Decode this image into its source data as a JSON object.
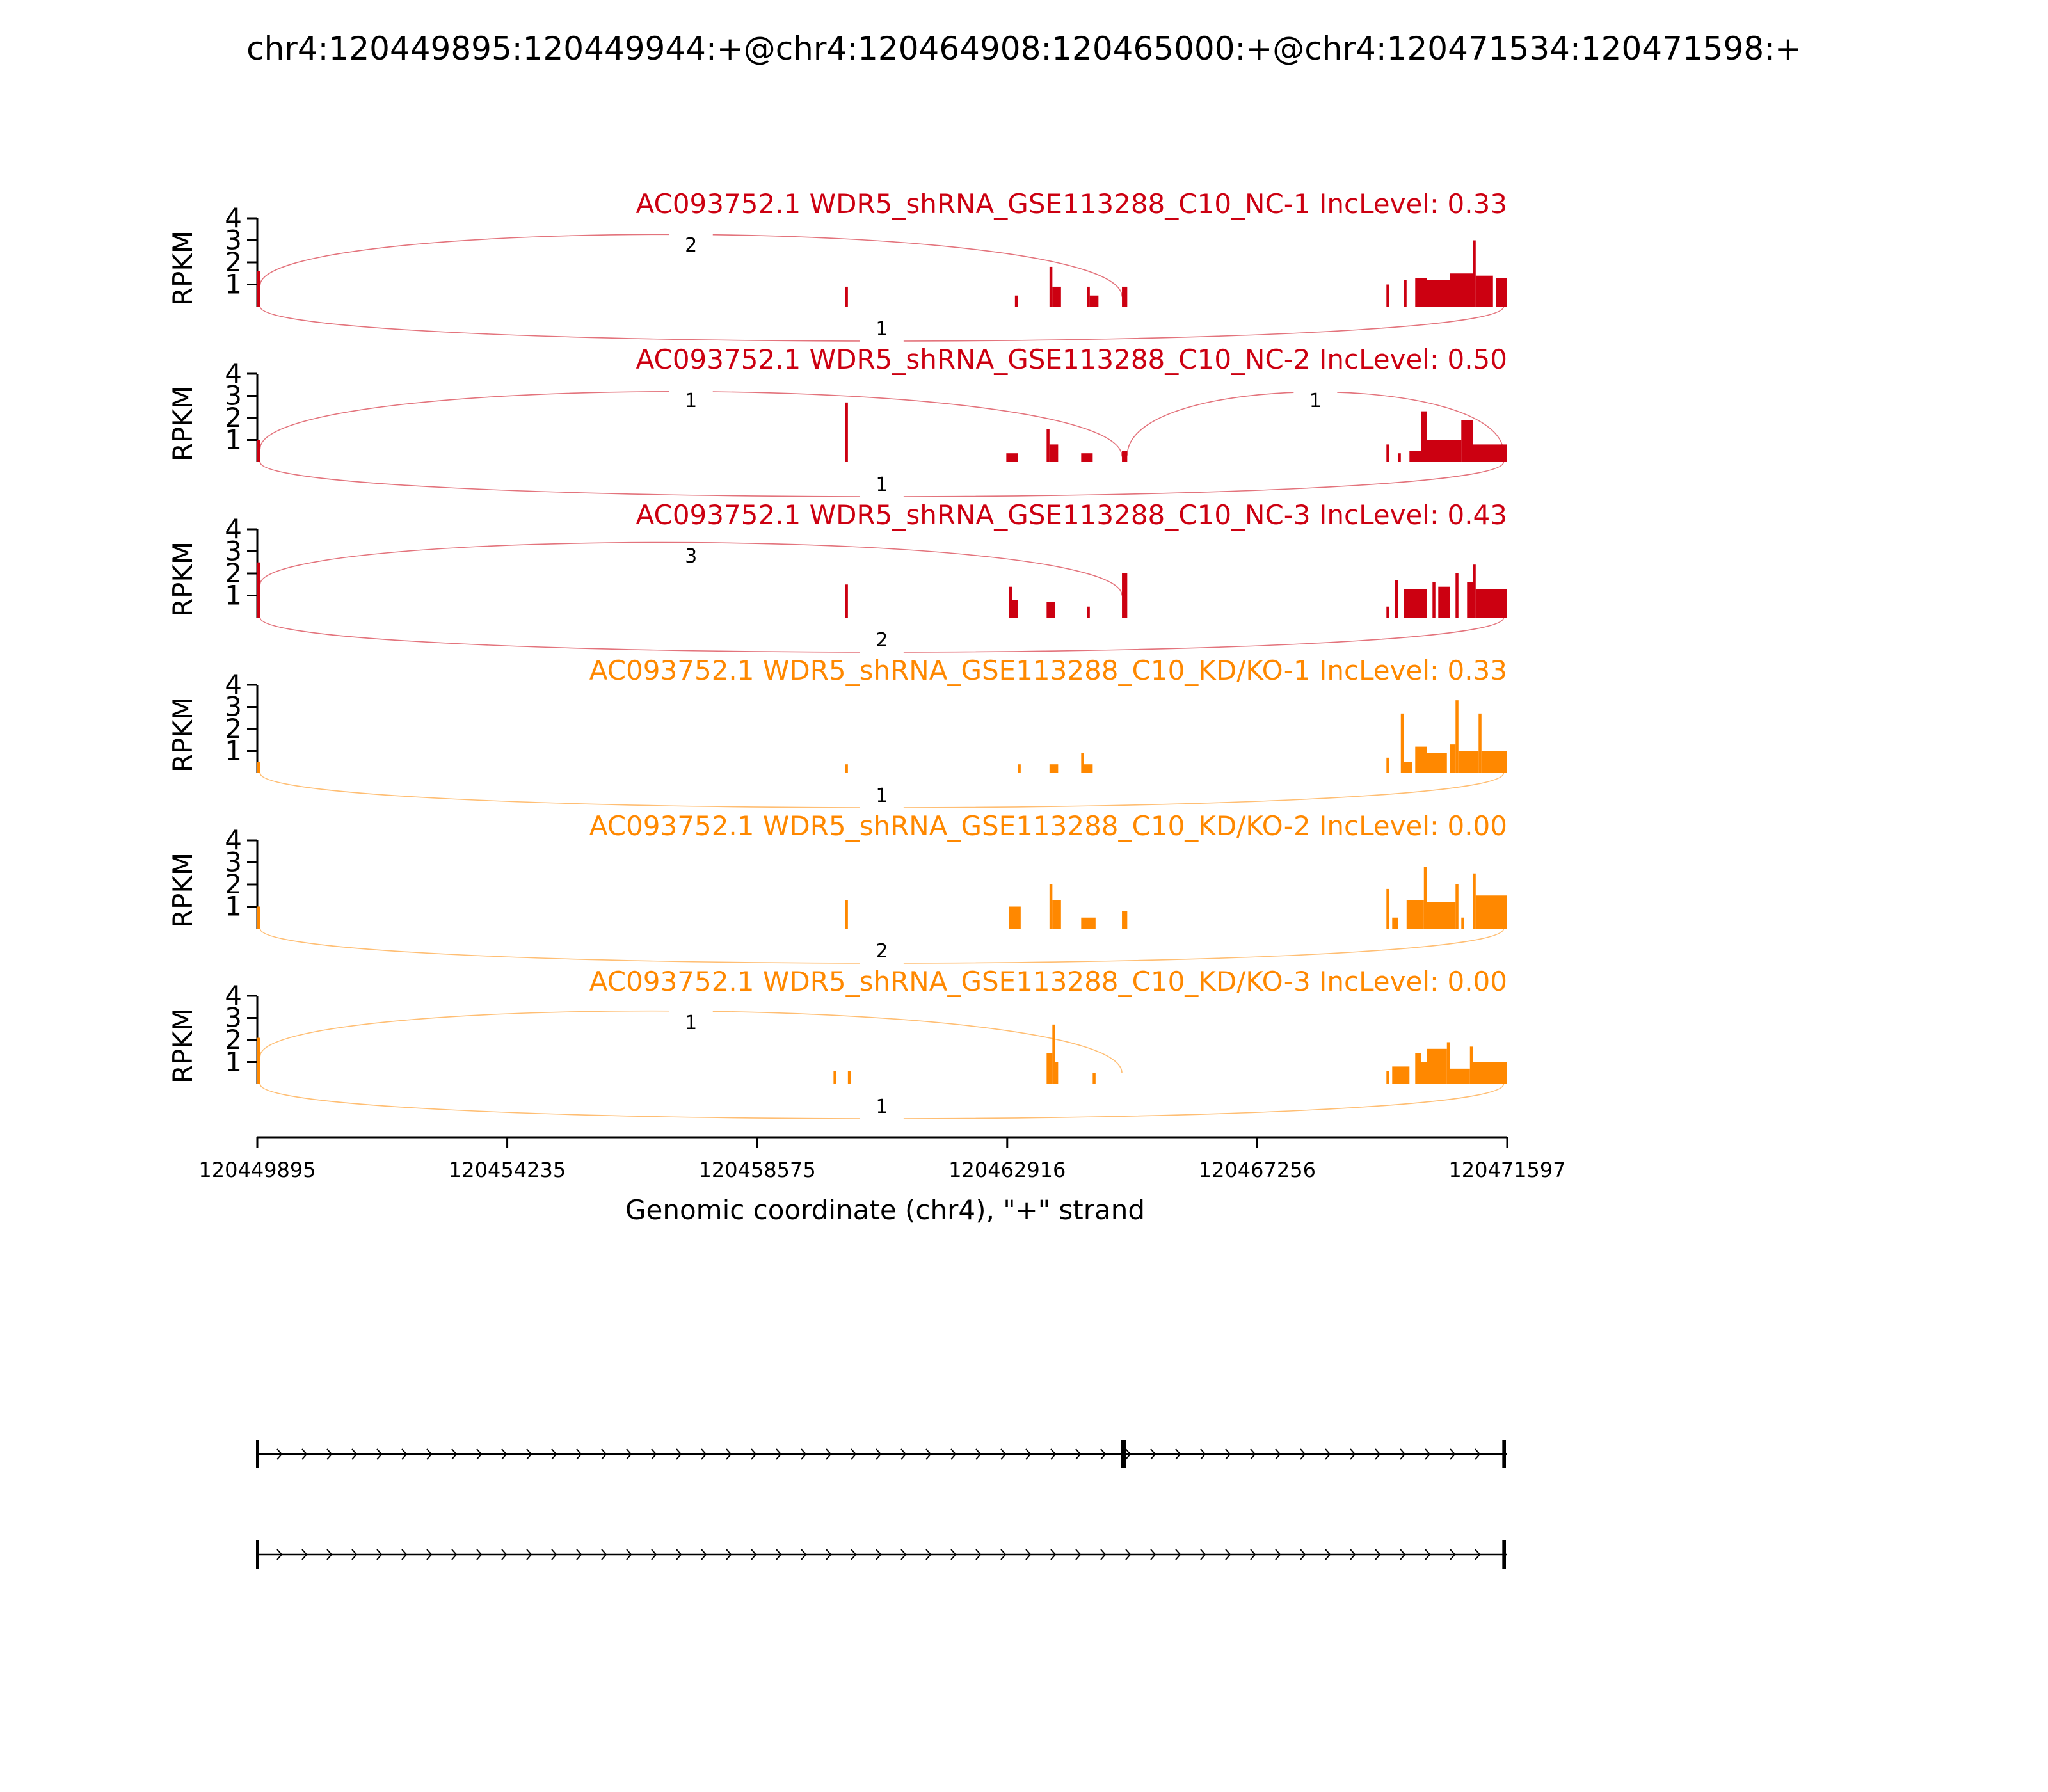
{
  "chart_data": {
    "type": "sashimi",
    "title": "chr4:120449895:120449944:+@chr4:120464908:120465000:+@chr4:120471534:120471598:+",
    "xlabel": "Genomic coordinate (chr4), \"+\" strand",
    "ylabel": "RPKM",
    "xlim": [
      120449895,
      120471597
    ],
    "x_ticks": [
      120449895,
      120454235,
      120458575,
      120462916,
      120467256,
      120471597
    ],
    "x_tick_labels": [
      "120449895",
      "120454235",
      "120458575",
      "120462916",
      "120467256",
      "120471597"
    ],
    "ylim": [
      0,
      4
    ],
    "y_ticks": [
      1,
      2,
      3,
      4
    ],
    "y_tick_labels": [
      "1",
      "2",
      "3",
      "4"
    ],
    "colors": {
      "NC": "#cc0011",
      "KD": "#ff8800"
    },
    "tracks": [
      {
        "title": "AC093752.1 WDR5_shRNA_GSE113288_C10_NC-1 IncLevel: 0.33",
        "group": "NC",
        "coverage": [
          {
            "s": 120449895,
            "e": 120449945,
            "v": 1.6
          },
          {
            "s": 120460100,
            "e": 120460150,
            "v": 0.9
          },
          {
            "s": 120463050,
            "e": 120463100,
            "v": 0.5
          },
          {
            "s": 120463650,
            "e": 120463700,
            "v": 1.8
          },
          {
            "s": 120463700,
            "e": 120463850,
            "v": 0.9
          },
          {
            "s": 120464300,
            "e": 120464350,
            "v": 0.9
          },
          {
            "s": 120464350,
            "e": 120464500,
            "v": 0.5
          },
          {
            "s": 120464908,
            "e": 120465000,
            "v": 0.9
          },
          {
            "s": 120469500,
            "e": 120469550,
            "v": 1.0
          },
          {
            "s": 120469800,
            "e": 120469850,
            "v": 1.2
          },
          {
            "s": 120470000,
            "e": 120470200,
            "v": 1.3
          },
          {
            "s": 120470200,
            "e": 120470600,
            "v": 1.2
          },
          {
            "s": 120470600,
            "e": 120471000,
            "v": 1.5
          },
          {
            "s": 120471000,
            "e": 120471050,
            "v": 3.0
          },
          {
            "s": 120471050,
            "e": 120471350,
            "v": 1.4
          },
          {
            "s": 120471400,
            "e": 120471597,
            "v": 1.3
          }
        ],
        "junctions_above": [
          {
            "from": 120449944,
            "to": 120464908,
            "count": "2"
          }
        ],
        "junctions_below": [
          {
            "from": 120449944,
            "to": 120471534,
            "count": "1"
          }
        ]
      },
      {
        "title": "AC093752.1 WDR5_shRNA_GSE113288_C10_NC-2 IncLevel: 0.50",
        "group": "NC",
        "coverage": [
          {
            "s": 120449895,
            "e": 120449945,
            "v": 1.0
          },
          {
            "s": 120460100,
            "e": 120460150,
            "v": 2.7
          },
          {
            "s": 120462900,
            "e": 120463100,
            "v": 0.4
          },
          {
            "s": 120463600,
            "e": 120463650,
            "v": 1.5
          },
          {
            "s": 120463650,
            "e": 120463800,
            "v": 0.8
          },
          {
            "s": 120464200,
            "e": 120464400,
            "v": 0.4
          },
          {
            "s": 120464908,
            "e": 120465000,
            "v": 0.5
          },
          {
            "s": 120469500,
            "e": 120469550,
            "v": 0.8
          },
          {
            "s": 120469700,
            "e": 120469750,
            "v": 0.4
          },
          {
            "s": 120469900,
            "e": 120470100,
            "v": 0.5
          },
          {
            "s": 120470100,
            "e": 120470200,
            "v": 2.3
          },
          {
            "s": 120470200,
            "e": 120470800,
            "v": 1.0
          },
          {
            "s": 120470800,
            "e": 120471000,
            "v": 1.9
          },
          {
            "s": 120471000,
            "e": 120471597,
            "v": 0.8
          }
        ],
        "junctions_above": [
          {
            "from": 120449944,
            "to": 120464908,
            "count": "1"
          },
          {
            "from": 120465000,
            "to": 120471534,
            "count": "1"
          }
        ],
        "junctions_below": [
          {
            "from": 120449944,
            "to": 120471534,
            "count": "1"
          }
        ]
      },
      {
        "title": "AC093752.1 WDR5_shRNA_GSE113288_C10_NC-3 IncLevel: 0.43",
        "group": "NC",
        "coverage": [
          {
            "s": 120449895,
            "e": 120449945,
            "v": 2.5
          },
          {
            "s": 120460100,
            "e": 120460150,
            "v": 1.5
          },
          {
            "s": 120462950,
            "e": 120463000,
            "v": 1.4
          },
          {
            "s": 120463000,
            "e": 120463100,
            "v": 0.8
          },
          {
            "s": 120463600,
            "e": 120463750,
            "v": 0.7
          },
          {
            "s": 120464300,
            "e": 120464350,
            "v": 0.5
          },
          {
            "s": 120464908,
            "e": 120465000,
            "v": 2.0
          },
          {
            "s": 120469500,
            "e": 120469550,
            "v": 0.5
          },
          {
            "s": 120469650,
            "e": 120469700,
            "v": 1.7
          },
          {
            "s": 120469800,
            "e": 120470200,
            "v": 1.3
          },
          {
            "s": 120470300,
            "e": 120470350,
            "v": 1.6
          },
          {
            "s": 120470400,
            "e": 120470600,
            "v": 1.4
          },
          {
            "s": 120470700,
            "e": 120470750,
            "v": 2.0
          },
          {
            "s": 120470900,
            "e": 120471000,
            "v": 1.6
          },
          {
            "s": 120471000,
            "e": 120471050,
            "v": 2.4
          },
          {
            "s": 120471050,
            "e": 120471597,
            "v": 1.3
          }
        ],
        "junctions_above": [
          {
            "from": 120449944,
            "to": 120464908,
            "count": "3"
          }
        ],
        "junctions_below": [
          {
            "from": 120449944,
            "to": 120471534,
            "count": "2"
          }
        ]
      },
      {
        "title": "AC093752.1 WDR5_shRNA_GSE113288_C10_KD/KO-1 IncLevel: 0.33",
        "group": "KD",
        "coverage": [
          {
            "s": 120449895,
            "e": 120449945,
            "v": 0.5
          },
          {
            "s": 120460100,
            "e": 120460150,
            "v": 0.4
          },
          {
            "s": 120463100,
            "e": 120463150,
            "v": 0.4
          },
          {
            "s": 120463650,
            "e": 120463800,
            "v": 0.4
          },
          {
            "s": 120464200,
            "e": 120464250,
            "v": 0.9
          },
          {
            "s": 120464250,
            "e": 120464400,
            "v": 0.4
          },
          {
            "s": 120469500,
            "e": 120469550,
            "v": 0.7
          },
          {
            "s": 120469750,
            "e": 120469800,
            "v": 2.7
          },
          {
            "s": 120469800,
            "e": 120469950,
            "v": 0.5
          },
          {
            "s": 120470000,
            "e": 120470200,
            "v": 1.2
          },
          {
            "s": 120470200,
            "e": 120470550,
            "v": 0.9
          },
          {
            "s": 120470600,
            "e": 120470700,
            "v": 1.3
          },
          {
            "s": 120470700,
            "e": 120470750,
            "v": 3.3
          },
          {
            "s": 120470750,
            "e": 120471100,
            "v": 1.0
          },
          {
            "s": 120471100,
            "e": 120471150,
            "v": 2.7
          },
          {
            "s": 120471150,
            "e": 120471597,
            "v": 1.0
          }
        ],
        "junctions_above": [],
        "junctions_below": [
          {
            "from": 120449944,
            "to": 120471534,
            "count": "1"
          }
        ]
      },
      {
        "title": "AC093752.1 WDR5_shRNA_GSE113288_C10_KD/KO-2 IncLevel: 0.00",
        "group": "KD",
        "coverage": [
          {
            "s": 120449895,
            "e": 120449945,
            "v": 1.0
          },
          {
            "s": 120460100,
            "e": 120460150,
            "v": 1.3
          },
          {
            "s": 120462950,
            "e": 120463150,
            "v": 1.0
          },
          {
            "s": 120463650,
            "e": 120463700,
            "v": 2.0
          },
          {
            "s": 120463700,
            "e": 120463850,
            "v": 1.3
          },
          {
            "s": 120464200,
            "e": 120464450,
            "v": 0.5
          },
          {
            "s": 120464908,
            "e": 120465000,
            "v": 0.8
          },
          {
            "s": 120469500,
            "e": 120469550,
            "v": 1.8
          },
          {
            "s": 120469600,
            "e": 120469700,
            "v": 0.5
          },
          {
            "s": 120469850,
            "e": 120470150,
            "v": 1.3
          },
          {
            "s": 120470150,
            "e": 120470200,
            "v": 2.8
          },
          {
            "s": 120470200,
            "e": 120470700,
            "v": 1.2
          },
          {
            "s": 120470700,
            "e": 120470750,
            "v": 2.0
          },
          {
            "s": 120470800,
            "e": 120470850,
            "v": 0.5
          },
          {
            "s": 120471000,
            "e": 120471050,
            "v": 2.5
          },
          {
            "s": 120471050,
            "e": 120471597,
            "v": 1.5
          }
        ],
        "junctions_above": [],
        "junctions_below": [
          {
            "from": 120449944,
            "to": 120471534,
            "count": "2"
          }
        ]
      },
      {
        "title": "AC093752.1 WDR5_shRNA_GSE113288_C10_KD/KO-3 IncLevel: 0.00",
        "group": "KD",
        "coverage": [
          {
            "s": 120449895,
            "e": 120449945,
            "v": 2.1
          },
          {
            "s": 120459900,
            "e": 120459950,
            "v": 0.6
          },
          {
            "s": 120460150,
            "e": 120460200,
            "v": 0.6
          },
          {
            "s": 120463600,
            "e": 120463700,
            "v": 1.4
          },
          {
            "s": 120463700,
            "e": 120463750,
            "v": 2.7
          },
          {
            "s": 120463750,
            "e": 120463800,
            "v": 1.0
          },
          {
            "s": 120464400,
            "e": 120464450,
            "v": 0.5
          },
          {
            "s": 120469500,
            "e": 120469550,
            "v": 0.6
          },
          {
            "s": 120469600,
            "e": 120469900,
            "v": 0.8
          },
          {
            "s": 120470000,
            "e": 120470100,
            "v": 1.4
          },
          {
            "s": 120470100,
            "e": 120470200,
            "v": 1.0
          },
          {
            "s": 120470200,
            "e": 120470550,
            "v": 1.6
          },
          {
            "s": 120470550,
            "e": 120470600,
            "v": 1.9
          },
          {
            "s": 120470600,
            "e": 120470950,
            "v": 0.7
          },
          {
            "s": 120470950,
            "e": 120471000,
            "v": 1.7
          },
          {
            "s": 120471000,
            "e": 120471597,
            "v": 1.0
          }
        ],
        "junctions_above": [
          {
            "from": 120449944,
            "to": 120464908,
            "count": "1"
          }
        ],
        "junctions_below": [
          {
            "from": 120449944,
            "to": 120471534,
            "count": "1"
          }
        ]
      }
    ],
    "isoforms": [
      {
        "exons": [
          [
            120449895,
            120449944
          ],
          [
            120464908,
            120465000
          ],
          [
            120471534,
            120471598
          ]
        ]
      },
      {
        "exons": [
          [
            120449895,
            120449944
          ],
          [
            120471534,
            120471598
          ]
        ]
      }
    ]
  }
}
